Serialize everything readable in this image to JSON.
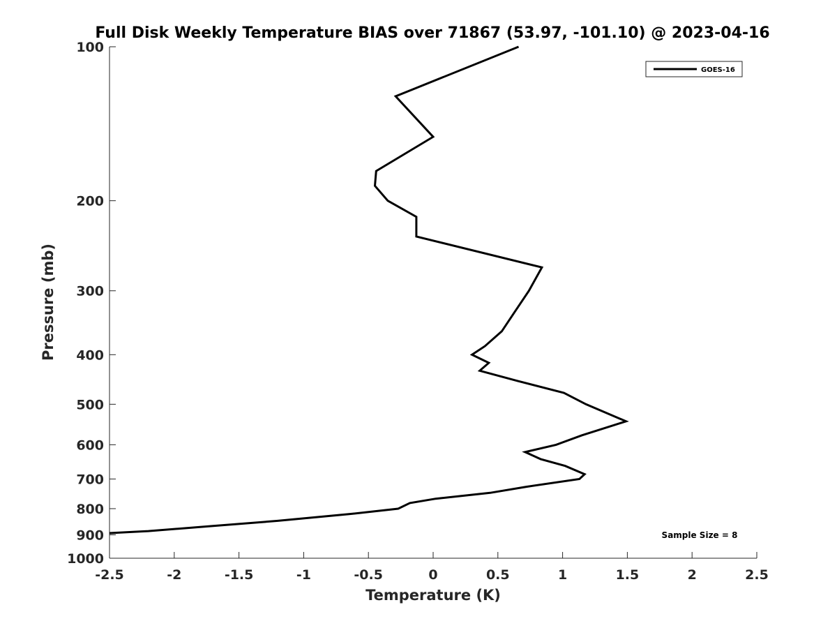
{
  "chart_data": {
    "type": "line",
    "title": "Full Disk Weekly Temperature BIAS over 71867 (53.97, -101.10) @ 2023-04-16",
    "xlabel": "Temperature (K)",
    "ylabel": "Pressure (mb)",
    "xlim": [
      -2.5,
      2.5
    ],
    "ylim": [
      100,
      1000
    ],
    "y_scale": "log",
    "y_reversed": true,
    "grid": false,
    "legend_position": "top-right",
    "x_ticks": [
      "-2.5",
      "-2",
      "-1.5",
      "-1",
      "-0.5",
      "0",
      "0.5",
      "1",
      "1.5",
      "2",
      "2.5"
    ],
    "y_ticks": [
      "100",
      "200",
      "300",
      "400",
      "500",
      "600",
      "700",
      "800",
      "900",
      "1000"
    ],
    "annotation": "Sample Size = 8",
    "series": [
      {
        "name": "GOES-16",
        "color": "#000000",
        "points": [
          {
            "x": 0.66,
            "p": 100
          },
          {
            "x": -0.29,
            "p": 125
          },
          {
            "x": 0.0,
            "p": 150
          },
          {
            "x": -0.44,
            "p": 175
          },
          {
            "x": -0.45,
            "p": 187
          },
          {
            "x": -0.35,
            "p": 200
          },
          {
            "x": -0.13,
            "p": 215
          },
          {
            "x": -0.13,
            "p": 235
          },
          {
            "x": 0.84,
            "p": 270
          },
          {
            "x": 0.74,
            "p": 300
          },
          {
            "x": 0.63,
            "p": 330
          },
          {
            "x": 0.53,
            "p": 360
          },
          {
            "x": 0.4,
            "p": 385
          },
          {
            "x": 0.3,
            "p": 400
          },
          {
            "x": 0.43,
            "p": 415
          },
          {
            "x": 0.36,
            "p": 430
          },
          {
            "x": 0.65,
            "p": 450
          },
          {
            "x": 1.01,
            "p": 475
          },
          {
            "x": 1.18,
            "p": 500
          },
          {
            "x": 1.49,
            "p": 540
          },
          {
            "x": 1.15,
            "p": 575
          },
          {
            "x": 0.95,
            "p": 600
          },
          {
            "x": 0.71,
            "p": 620
          },
          {
            "x": 0.83,
            "p": 640
          },
          {
            "x": 1.02,
            "p": 660
          },
          {
            "x": 1.17,
            "p": 685
          },
          {
            "x": 1.13,
            "p": 700
          },
          {
            "x": 0.72,
            "p": 725
          },
          {
            "x": 0.44,
            "p": 745
          },
          {
            "x": 0.02,
            "p": 765
          },
          {
            "x": -0.18,
            "p": 780
          },
          {
            "x": -0.27,
            "p": 800
          },
          {
            "x": -0.65,
            "p": 820
          },
          {
            "x": -1.2,
            "p": 845
          },
          {
            "x": -1.7,
            "p": 865
          },
          {
            "x": -2.2,
            "p": 885
          },
          {
            "x": -2.5,
            "p": 893
          }
        ]
      }
    ]
  }
}
